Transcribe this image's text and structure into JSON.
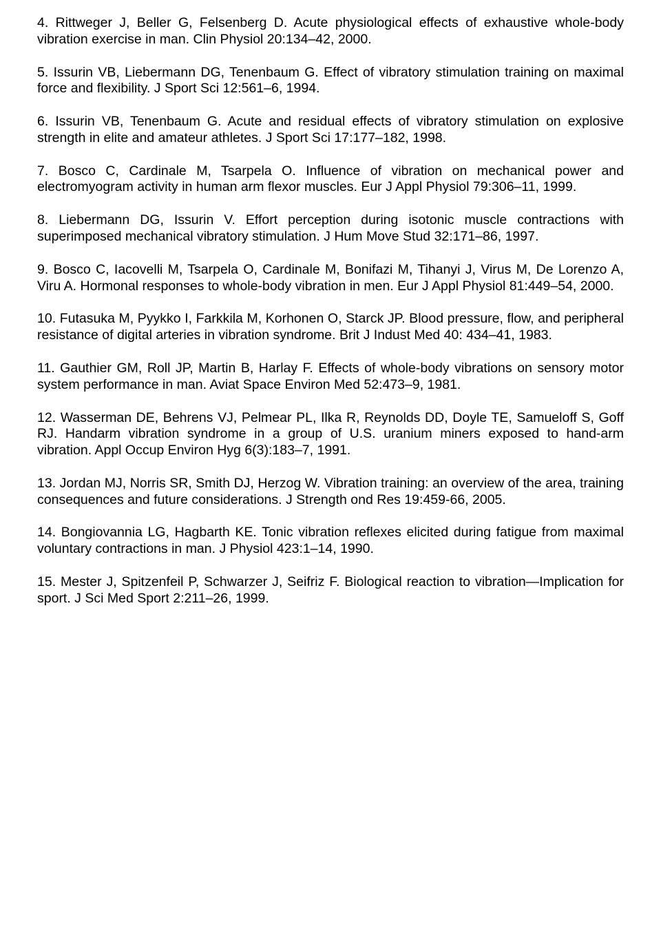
{
  "references": [
    "4. Rittweger J, Beller G, Felsenberg D. Acute physiological effects of exhaustive whole-body vibration exercise in man. Clin Physiol 20:134–42, 2000.",
    "5. Issurin VB, Liebermann DG, Tenenbaum G. Effect of vibratory stimulation training on maximal force and flexibility. J Sport Sci 12:561–6, 1994.",
    "6. Issurin VB, Tenenbaum G. Acute and residual effects of vibratory stimulation on explosive strength in elite and amateur athletes. J Sport Sci 17:177–182, 1998.",
    "7. Bosco C, Cardinale M, Tsarpela O. Influence of vibration on mechanical power and electromyogram activity in human arm flexor muscles. Eur J Appl Physiol 79:306–11, 1999.",
    "8. Liebermann DG, Issurin V. Effort perception during isotonic muscle contractions with superimposed mechanical vibratory stimulation. J Hum Move Stud 32:171–86, 1997.",
    "9. Bosco C, Iacovelli M, Tsarpela O, Cardinale M, Bonifazi M, Tihanyi J, Virus M, De Lorenzo A, Viru A. Hormonal responses to whole-body vibration in men. Eur J Appl Physiol 81:449–54, 2000.",
    "10. Futasuka M, Pyykko I, Farkkila M, Korhonen O, Starck JP. Blood pressure, flow, and peripheral resistance of digital arteries in vibration syndrome. Brit J Indust Med 40: 434–41, 1983.",
    "11. Gauthier GM, Roll JP, Martin B, Harlay F. Effects of whole-body vibrations on sensory motor system performance in man. Aviat Space Environ Med 52:473–9, 1981.",
    "12. Wasserman DE, Behrens VJ, Pelmear PL, Ilka R, Reynolds DD, Doyle TE, Samueloff S, Goff RJ. Handarm vibration syndrome in a group of U.S. uranium miners exposed to hand-arm vibration. Appl Occup Environ Hyg 6(3):183–7, 1991.",
    "13. Jordan MJ, Norris SR, Smith DJ, Herzog W. Vibration training: an overview of the area, training consequences and future considerations. J Strength ond Res 19:459-66, 2005.",
    "14. Bongiovannia LG, Hagbarth KE. Tonic vibration reflexes elicited during fatigue from maximal voluntary contractions in man. J Physiol 423:1–14, 1990.",
    "15. Mester J, Spitzenfeil P, Schwarzer J, Seifriz F. Biological reaction to vibration—Implication for sport. J Sci Med Sport 2:211–26, 1999."
  ]
}
